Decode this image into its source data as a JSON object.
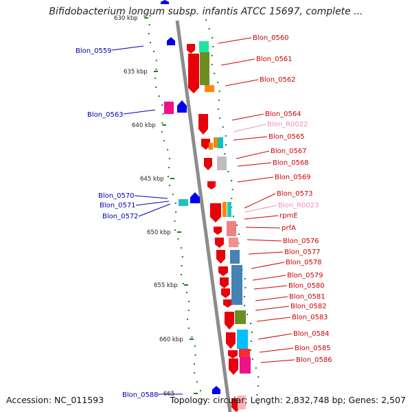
{
  "header": {
    "title": "Bifidobacterium longum subsp. infantis ATCC 15697, complete ..."
  },
  "footer": {
    "accession": "Accession: NC_011593",
    "topology": "Topology: circular; Length: 2,832,748 bp; Genes: 2,507"
  },
  "colors": {
    "backbone": "#8c8c8c",
    "forward_gene": "#e8000b",
    "reverse_gene": "#0000ee",
    "rna_label": "#f08fb5",
    "left_label": "#0000aa",
    "right_label": "#cc0000",
    "gc_tick": "#1e7a1e"
  },
  "diagram": {
    "scale_labels": [
      {
        "text": "630 kbp"
      },
      {
        "text": "635 kbp"
      },
      {
        "text": "640 kbp"
      },
      {
        "text": "645 kbp"
      },
      {
        "text": "650 kbp"
      },
      {
        "text": "655 kbp"
      },
      {
        "text": "660 kbp"
      },
      {
        "text": "665"
      }
    ],
    "left_gene_labels": [
      {
        "text": "Blon_0559"
      },
      {
        "text": "Blon_0563"
      },
      {
        "text": "Blon_0570"
      },
      {
        "text": "Blon_0571"
      },
      {
        "text": "Blon_0572"
      },
      {
        "text": "Blon_0588"
      }
    ],
    "right_gene_labels": [
      {
        "text": "Blon_0560",
        "type": "gene"
      },
      {
        "text": "Blon_0561",
        "type": "gene"
      },
      {
        "text": "Blon_0562",
        "type": "gene"
      },
      {
        "text": "Blon_0564",
        "type": "gene"
      },
      {
        "text": "Blon_R0022",
        "type": "rna"
      },
      {
        "text": "Blon_0565",
        "type": "gene"
      },
      {
        "text": "Blon_0567",
        "type": "gene"
      },
      {
        "text": "Blon_0568",
        "type": "gene"
      },
      {
        "text": "Blon_0569",
        "type": "gene"
      },
      {
        "text": "Blon_0573",
        "type": "gene"
      },
      {
        "text": "Blon_R0023",
        "type": "rna"
      },
      {
        "text": "rpmE",
        "type": "gene"
      },
      {
        "text": "prfA",
        "type": "gene"
      },
      {
        "text": "Blon_0576",
        "type": "gene"
      },
      {
        "text": "Blon_0577",
        "type": "gene"
      },
      {
        "text": "Blon_0578",
        "type": "gene"
      },
      {
        "text": "Blon_0579",
        "type": "gene"
      },
      {
        "text": "Blon_0580",
        "type": "gene"
      },
      {
        "text": "Blon_0581",
        "type": "gene"
      },
      {
        "text": "Blon_0582",
        "type": "gene"
      },
      {
        "text": "Blon_0583",
        "type": "gene"
      },
      {
        "text": "Blon_0584",
        "type": "gene"
      },
      {
        "text": "Blon_0585",
        "type": "gene"
      },
      {
        "text": "Blon_0586",
        "type": "gene"
      }
    ]
  }
}
